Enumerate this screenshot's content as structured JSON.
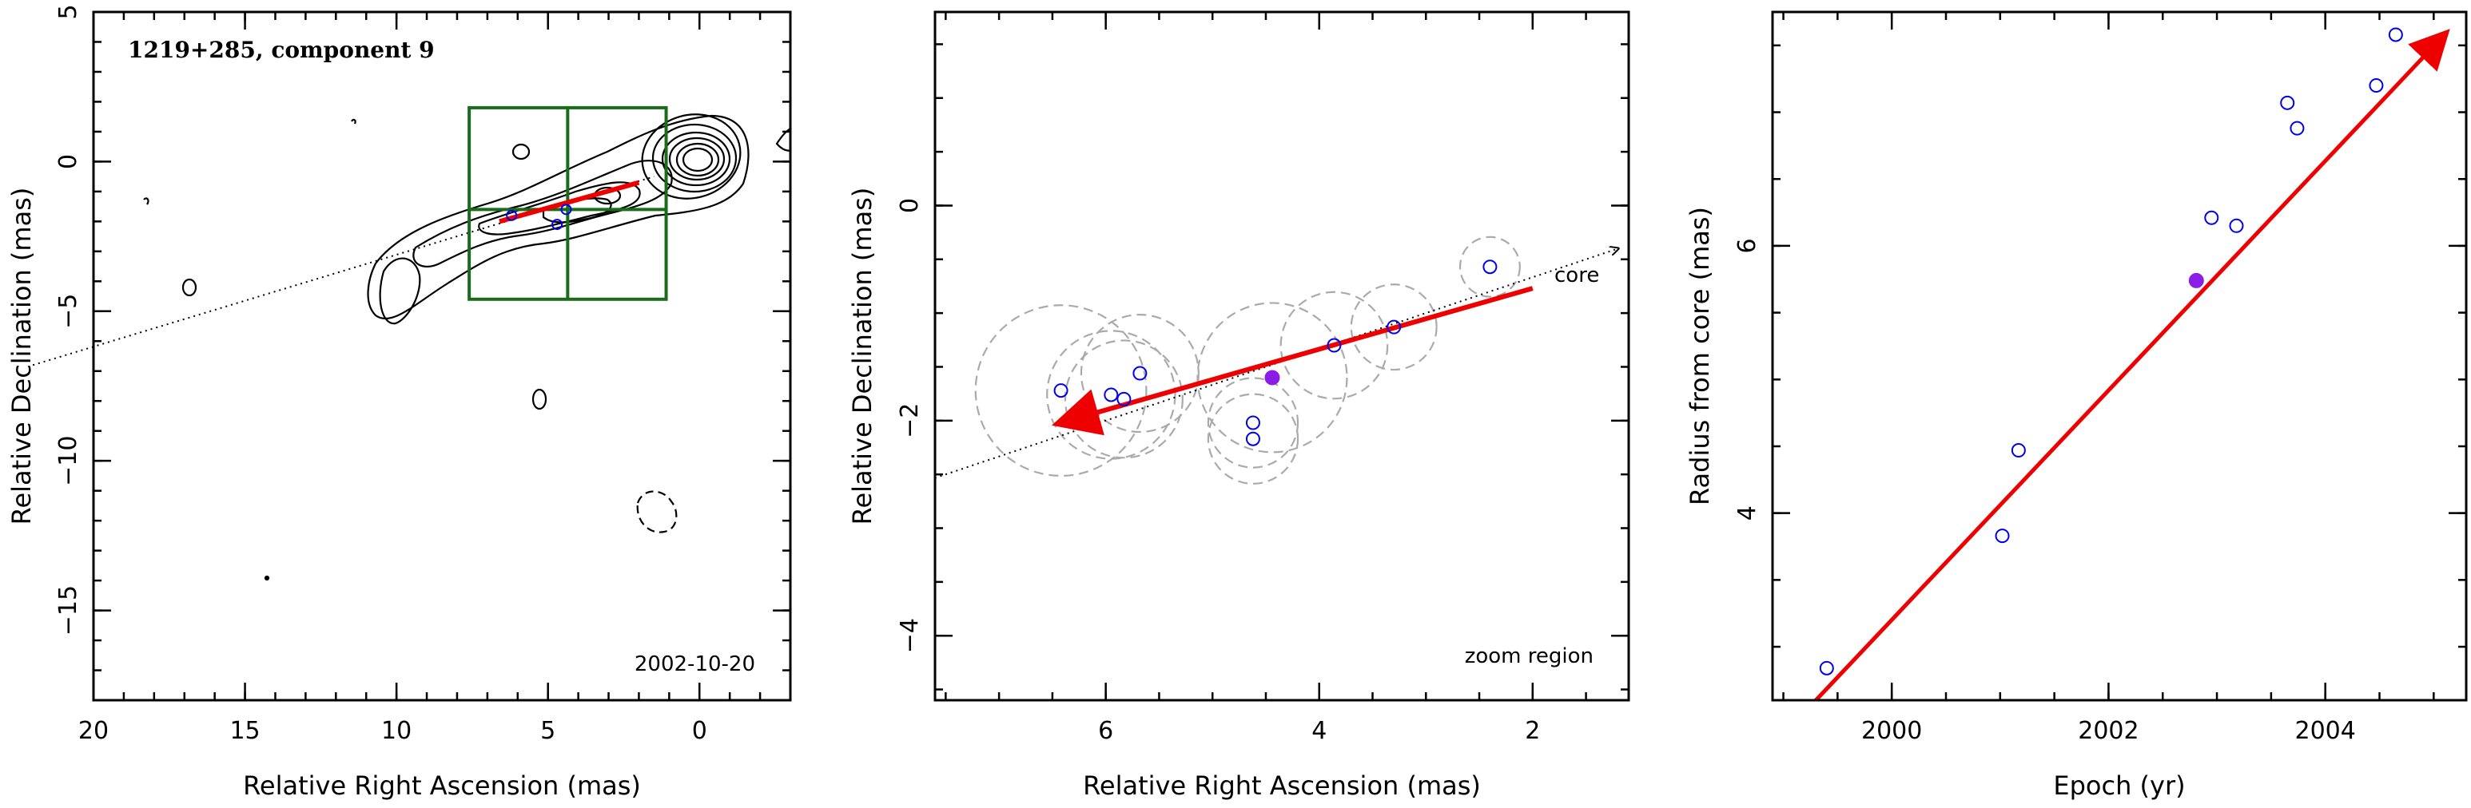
{
  "chart_data": [
    {
      "type": "scatter",
      "panel": "contour-map",
      "title": "1219+285, component 9",
      "date": "2002-10-20",
      "xlabel": "Relative Right Ascension (mas)",
      "ylabel": "Relative Declination (mas)",
      "xlim": [
        20,
        -3
      ],
      "ylim": [
        -18,
        5
      ],
      "xticks": [
        20,
        15,
        10,
        5,
        0
      ],
      "yticks": [
        5,
        0,
        -5,
        -10,
        -15
      ],
      "zoom_box": {
        "x": [
          7.6,
          1.1
        ],
        "y": [
          -4.6,
          1.8
        ],
        "color": "#1a6b1a"
      },
      "track_line": {
        "from": [
          22,
          -6.8
        ],
        "to": [
          1.5,
          -0.5
        ]
      },
      "velocity_arrow": {
        "from": [
          2.0,
          -0.7
        ],
        "to": [
          6.6,
          -2.0
        ],
        "color": "#ee0000"
      },
      "points": [
        {
          "x": 6.2,
          "y": -1.8
        },
        {
          "x": 4.7,
          "y": -2.1
        },
        {
          "x": 4.4,
          "y": -1.6
        }
      ],
      "color_points": "#0000ee"
    },
    {
      "type": "scatter",
      "panel": "zoom",
      "annotation": "zoom region",
      "core_label": "core",
      "xlabel": "Relative Right Ascension (mas)",
      "ylabel": "Relative Declination (mas)",
      "xlim": [
        7.6,
        1.1
      ],
      "ylim": [
        -4.6,
        1.8
      ],
      "xticks": [
        6,
        4,
        2
      ],
      "yticks": [
        0,
        -2,
        -4
      ],
      "points": [
        {
          "x": 6.42,
          "y": -1.72,
          "r": 0.8
        },
        {
          "x": 5.95,
          "y": -1.76,
          "r": 0.6
        },
        {
          "x": 5.83,
          "y": -1.8,
          "r": 0.55
        },
        {
          "x": 5.68,
          "y": -1.56,
          "r": 0.55
        },
        {
          "x": 4.62,
          "y": -2.02,
          "r": 0.42
        },
        {
          "x": 4.62,
          "y": -2.17,
          "r": 0.42
        },
        {
          "x": 4.44,
          "y": -1.6,
          "r": 0.7,
          "filled": true
        },
        {
          "x": 3.86,
          "y": -1.3,
          "r": 0.5
        },
        {
          "x": 3.3,
          "y": -1.13,
          "r": 0.4
        },
        {
          "x": 2.4,
          "y": -0.57,
          "r": 0.28
        }
      ],
      "track_line": {
        "from": [
          7.8,
          -2.6
        ],
        "to": [
          1.2,
          -0.4
        ]
      },
      "velocity_arrow": {
        "from": [
          2.0,
          -0.77
        ],
        "to": [
          6.42,
          -2.02
        ],
        "color": "#ee0000"
      },
      "color_points": "#0000ee",
      "color_filled": "#8a1ee6",
      "color_circles": "#aaaaaa"
    },
    {
      "type": "scatter",
      "panel": "radius-vs-epoch",
      "xlabel": "Epoch (yr)",
      "ylabel": "Radius from core (mas)",
      "xlim": [
        1998.9,
        2005.3
      ],
      "ylim": [
        2.6,
        7.75
      ],
      "xticks": [
        2000,
        2002,
        2004
      ],
      "yticks": [
        4,
        6
      ],
      "points": [
        {
          "x": 1999.4,
          "y": 2.84
        },
        {
          "x": 2001.02,
          "y": 3.83
        },
        {
          "x": 2001.17,
          "y": 4.47
        },
        {
          "x": 2002.81,
          "y": 5.74,
          "filled": true
        },
        {
          "x": 2002.95,
          "y": 6.21
        },
        {
          "x": 2003.18,
          "y": 6.15
        },
        {
          "x": 2003.65,
          "y": 7.07
        },
        {
          "x": 2003.74,
          "y": 6.88
        },
        {
          "x": 2004.47,
          "y": 7.2
        },
        {
          "x": 2004.65,
          "y": 7.58
        }
      ],
      "fit_arrow": {
        "from": [
          1999.3,
          2.6
        ],
        "to": [
          2005.1,
          7.58
        ],
        "color": "#ee0000"
      },
      "color_points": "#0000ee",
      "color_filled": "#8a1ee6"
    }
  ]
}
